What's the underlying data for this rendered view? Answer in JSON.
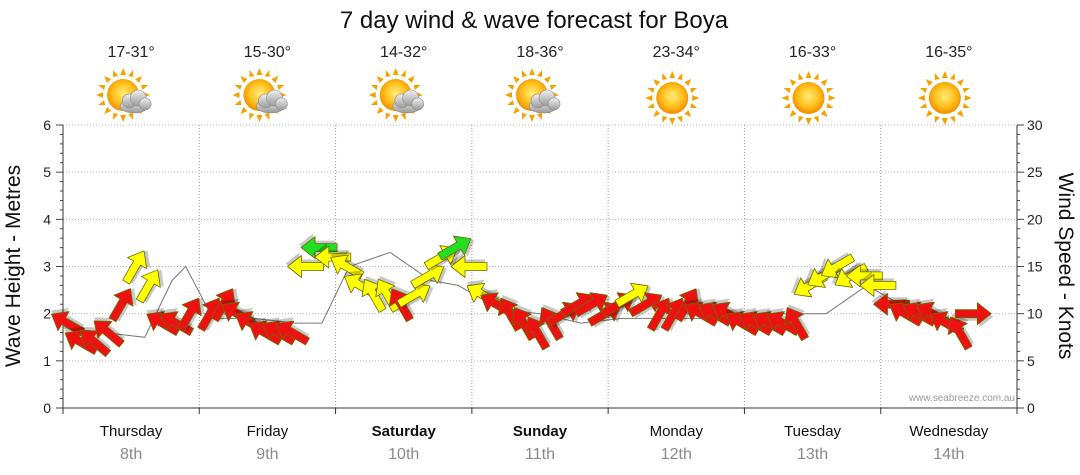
{
  "chart_data": {
    "type": "line",
    "title": "7 day wind & wave forecast for Boya",
    "ylabel_left": "Wave Height - Metres",
    "ylabel_right": "Wind Speed - Knots",
    "ylim_left": [
      0,
      6
    ],
    "ylim_right": [
      0,
      30
    ],
    "yticks_left": [
      "0",
      "1",
      "2",
      "3",
      "4",
      "5",
      "6"
    ],
    "yticks_right": [
      "0",
      "5",
      "10",
      "15",
      "20",
      "25",
      "30"
    ],
    "grid": true,
    "watermark": "www.seabreeze.com.au",
    "days": [
      {
        "name": "Thursday",
        "date": "8th",
        "bold": false,
        "temp": "17-31°",
        "weather": "partly-cloudy"
      },
      {
        "name": "Friday",
        "date": "9th",
        "bold": false,
        "temp": "15-30°",
        "weather": "partly-cloudy"
      },
      {
        "name": "Saturday",
        "date": "10th",
        "bold": true,
        "temp": "14-32°",
        "weather": "partly-cloudy"
      },
      {
        "name": "Sunday",
        "date": "11th",
        "bold": true,
        "temp": "18-36°",
        "weather": "partly-cloudy"
      },
      {
        "name": "Monday",
        "date": "12th",
        "bold": false,
        "temp": "23-34°",
        "weather": "sunny"
      },
      {
        "name": "Tuesday",
        "date": "13th",
        "bold": false,
        "temp": "16-33°",
        "weather": "sunny"
      },
      {
        "name": "Wednesday",
        "date": "14th",
        "bold": false,
        "temp": "16-35°",
        "weather": "sunny"
      }
    ],
    "wind_series": {
      "name": "Wind Speed - Knots",
      "x_days": [
        0.0,
        0.1,
        0.2,
        0.3,
        0.4,
        0.5,
        0.6,
        0.7,
        0.8,
        0.9,
        1.05,
        1.15,
        1.25,
        1.35,
        1.45,
        1.55,
        1.65,
        1.75,
        1.85,
        1.95,
        2.05,
        2.15,
        2.25,
        2.35,
        2.45,
        2.55,
        2.65,
        2.75,
        2.85,
        2.95,
        3.05,
        3.15,
        3.25,
        3.35,
        3.45,
        3.55,
        3.65,
        3.75,
        3.85,
        3.95,
        4.05,
        4.15,
        4.25,
        4.35,
        4.45,
        4.55,
        4.65,
        4.75,
        4.85,
        4.95,
        5.05,
        5.15,
        5.25,
        5.35,
        5.45,
        5.55,
        5.65,
        5.75,
        5.85,
        5.95,
        6.05,
        6.15,
        6.25,
        6.35,
        6.45,
        6.55,
        6.65
      ],
      "knots": [
        9,
        7,
        7,
        8,
        11,
        15,
        13,
        9,
        9,
        10,
        10,
        11,
        10,
        9,
        8,
        8,
        8,
        15,
        17,
        16,
        15,
        13,
        12,
        12,
        11,
        12,
        14,
        16,
        17,
        15,
        12,
        11,
        10,
        9,
        8,
        9,
        10,
        11,
        11,
        10,
        11,
        12,
        11,
        10,
        10,
        11,
        10,
        10,
        10,
        9,
        9,
        9,
        9,
        9,
        13,
        14,
        15,
        14,
        14,
        13,
        11,
        10,
        10,
        10,
        9,
        8,
        10
      ],
      "direction_deg": [
        300,
        300,
        310,
        310,
        30,
        30,
        30,
        300,
        300,
        30,
        30,
        30,
        300,
        300,
        300,
        300,
        300,
        270,
        270,
        270,
        300,
        300,
        330,
        330,
        330,
        60,
        60,
        60,
        60,
        270,
        300,
        300,
        330,
        330,
        330,
        330,
        60,
        60,
        60,
        60,
        60,
        60,
        60,
        30,
        30,
        30,
        300,
        300,
        300,
        300,
        300,
        300,
        300,
        330,
        240,
        240,
        240,
        240,
        270,
        270,
        270,
        300,
        300,
        300,
        300,
        330,
        90
      ],
      "colors": {
        "low": "#ee1111",
        "medium": "#ffff00",
        "high": "#22dd22"
      },
      "thresholds_knots": [
        12,
        17
      ]
    },
    "wave_series": {
      "name": "Wave Height - Metres",
      "x_days": [
        0.0,
        0.3,
        0.6,
        0.8,
        0.9,
        1.1,
        1.4,
        1.7,
        1.9,
        2.1,
        2.4,
        2.7,
        2.9,
        3.2,
        3.5,
        3.8,
        4.1,
        4.4,
        4.7,
        5.0,
        5.3,
        5.6,
        5.9,
        6.2,
        6.5
      ],
      "values": [
        1.7,
        1.6,
        1.5,
        2.7,
        3.0,
        1.9,
        1.9,
        1.8,
        1.8,
        3.0,
        3.3,
        2.7,
        2.6,
        2.1,
        2.0,
        1.8,
        1.9,
        1.9,
        1.9,
        2.0,
        2.0,
        2.0,
        2.6,
        2.1,
        1.9
      ]
    }
  }
}
